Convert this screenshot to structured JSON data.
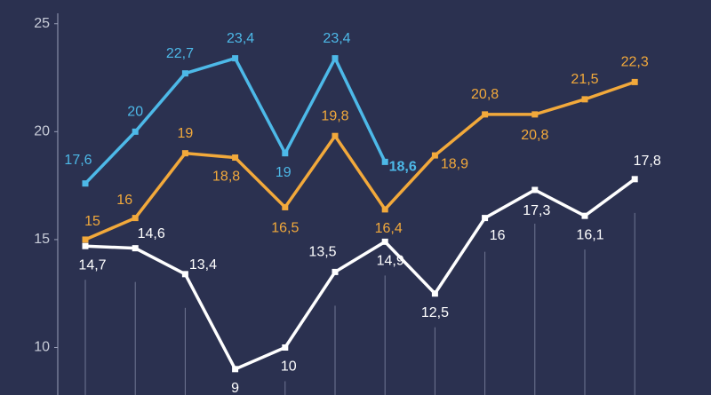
{
  "chart_data": {
    "type": "line",
    "categories": [
      null,
      null,
      null,
      null,
      null,
      null,
      null,
      null,
      null,
      null,
      null,
      null
    ],
    "series": [
      {
        "name": null,
        "color": "#4db9e8",
        "values": [
          17.6,
          20,
          22.7,
          23.4,
          19,
          23.4,
          18.6,
          null,
          null,
          null,
          null,
          null
        ],
        "value_labels": [
          "17,6",
          "20",
          "22,7",
          "23,4",
          "19",
          "23,4",
          "18,6",
          null,
          null,
          null,
          null,
          null
        ]
      },
      {
        "name": null,
        "color": "#f2a93b",
        "values": [
          15,
          16,
          19,
          18.8,
          16.5,
          19.8,
          16.4,
          18.9,
          20.8,
          20.8,
          21.5,
          22.3
        ],
        "value_labels": [
          "15",
          "16",
          "19",
          "18,8",
          "16,5",
          "19,8",
          "16,4",
          "18,9",
          "20,8",
          "20,8",
          "21,5",
          "22,3"
        ]
      },
      {
        "name": null,
        "color": "#ffffff",
        "values": [
          14.7,
          14.6,
          13.4,
          9,
          10,
          13.5,
          14.9,
          12.5,
          16,
          17.3,
          16.1,
          17.8
        ],
        "value_labels": [
          "14,7",
          "14,6",
          "13,4",
          "9",
          "10",
          "13,5",
          "14,9",
          "12,5",
          "16",
          "17,3",
          "16,1",
          "17,8"
        ]
      }
    ],
    "ylim": [
      7.8,
      26.1
    ],
    "yticks": [
      10,
      15,
      20,
      25
    ]
  }
}
